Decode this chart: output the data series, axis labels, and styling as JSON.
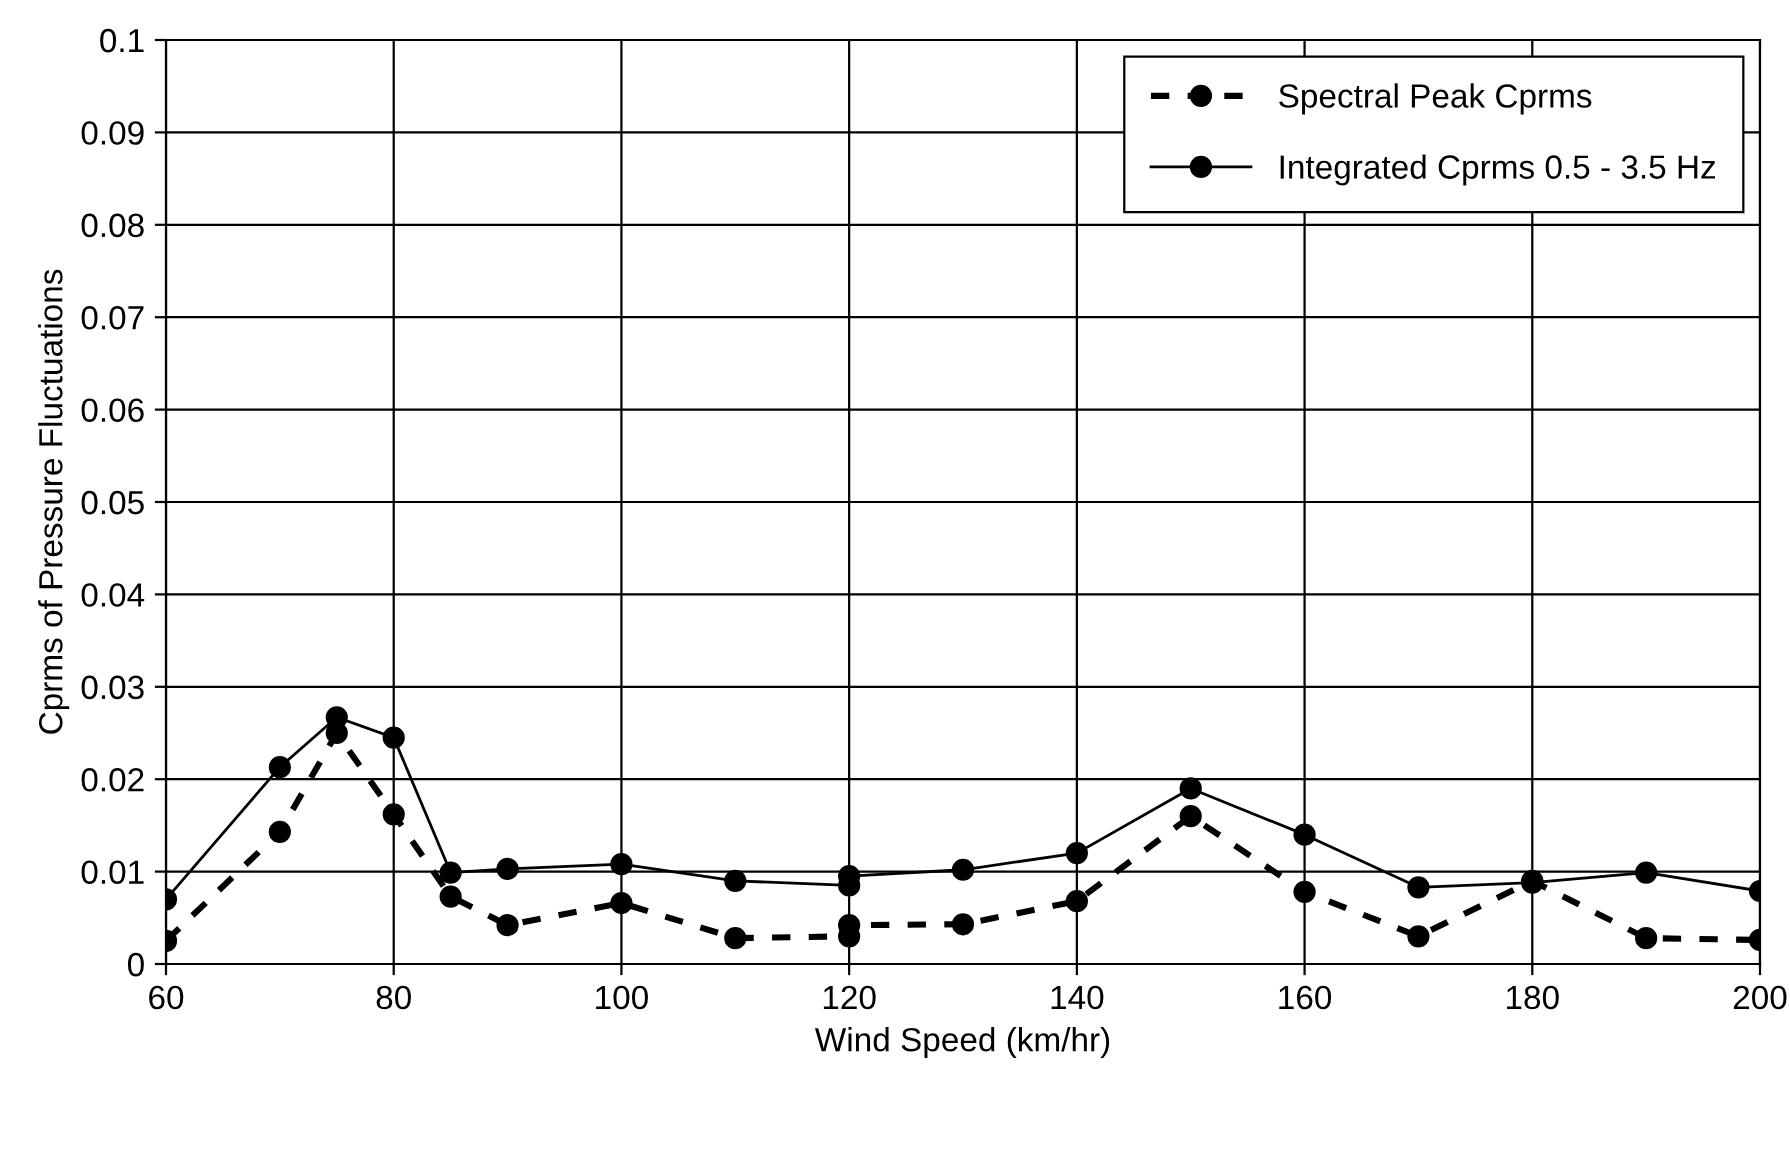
{
  "chart_data": {
    "type": "line",
    "xlabel": "Wind Speed (km/hr)",
    "ylabel": "Cprms of Pressure Fluctuations",
    "xlim": [
      60,
      200
    ],
    "xticks": [
      60,
      80,
      100,
      120,
      140,
      160,
      180,
      200
    ],
    "ylim": [
      0,
      0.1
    ],
    "yticks": [
      0,
      0.01,
      0.02,
      0.03,
      0.04,
      0.05,
      0.06,
      0.07,
      0.08,
      0.09,
      0.1
    ],
    "grid": true,
    "legend": "top right",
    "marker": "circle",
    "series": [
      {
        "name": "Spectral Peak Cprms",
        "color": "#000000",
        "line_style": "dashed",
        "x": [
          60,
          70,
          75,
          80,
          85,
          90,
          100,
          110,
          120,
          120,
          130,
          140,
          150,
          160,
          170,
          180,
          190,
          200
        ],
        "values": [
          0.0025,
          0.0143,
          0.025,
          0.0162,
          0.0073,
          0.0042,
          0.0066,
          0.0028,
          0.003,
          0.0042,
          0.0043,
          0.0068,
          0.016,
          0.0078,
          0.003,
          0.009,
          0.0028,
          0.0026
        ]
      },
      {
        "name": "Integrated Cprms 0.5 - 3.5 Hz",
        "color": "#000000",
        "line_style": "solid",
        "x": [
          60,
          70,
          75,
          80,
          85,
          90,
          100,
          110,
          120,
          120,
          130,
          140,
          150,
          160,
          170,
          180,
          190,
          200
        ],
        "values": [
          0.007,
          0.0213,
          0.0267,
          0.0245,
          0.0099,
          0.0103,
          0.0108,
          0.009,
          0.0085,
          0.0095,
          0.0102,
          0.012,
          0.019,
          0.014,
          0.0083,
          0.0088,
          0.0099,
          0.0079
        ]
      }
    ]
  }
}
